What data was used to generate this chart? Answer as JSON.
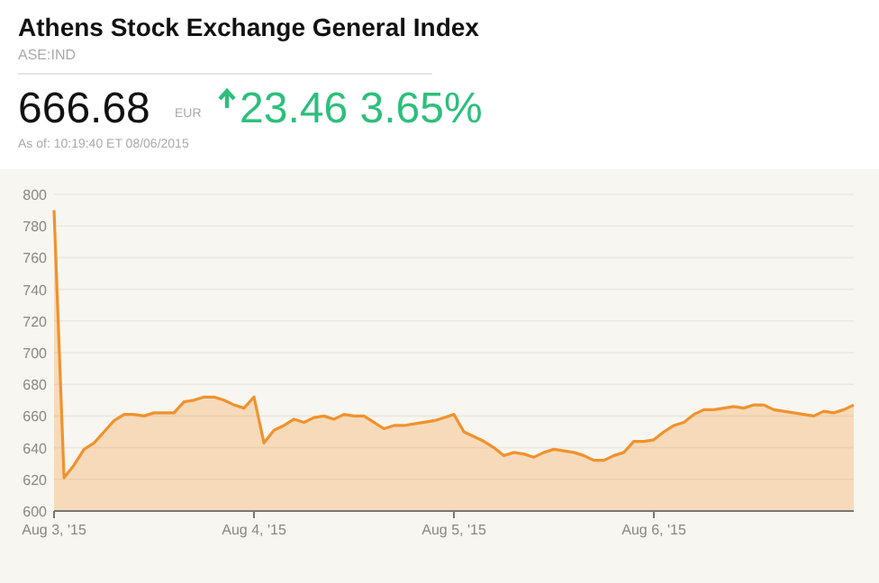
{
  "chart_data": {
    "type": "area",
    "title": "Athens Stock Exchange General Index",
    "subtitle": "ASE:IND",
    "annotations": [
      "666.68",
      "EUR",
      "23.46 3.65%",
      "As of: 10:19:40 ET 08/06/2015"
    ],
    "categories": [
      "Aug 3, '15",
      null,
      null,
      null,
      null,
      null,
      null,
      null,
      null,
      null,
      null,
      null,
      null,
      null,
      null,
      null,
      null,
      null,
      null,
      null,
      "Aug 4, '15",
      null,
      null,
      null,
      null,
      null,
      null,
      null,
      null,
      null,
      null,
      null,
      null,
      null,
      null,
      null,
      null,
      null,
      null,
      null,
      "Aug 5, '15",
      null,
      null,
      null,
      null,
      null,
      null,
      null,
      null,
      null,
      null,
      null,
      null,
      null,
      null,
      null,
      null,
      null,
      null,
      null,
      "Aug 6, '15",
      null,
      null,
      null,
      null,
      null,
      null,
      null,
      null,
      null,
      null,
      null,
      null,
      null,
      null,
      null,
      null,
      null,
      null,
      null,
      null
    ],
    "series": [
      {
        "color": "#f0922e",
        "values": [
          790,
          621,
          629,
          639,
          643,
          650,
          657,
          661,
          661,
          660,
          662,
          662,
          662,
          669,
          670,
          672,
          672,
          670,
          667,
          665,
          672,
          643,
          651,
          654,
          658,
          656,
          659,
          660,
          658,
          661,
          660,
          660,
          656,
          652,
          654,
          654,
          655,
          656,
          657,
          659,
          661,
          650,
          647,
          644,
          640,
          635,
          637,
          636,
          634,
          637,
          639,
          638,
          637,
          635,
          632,
          632,
          635,
          637,
          644,
          644,
          645,
          650,
          654,
          656,
          661,
          664,
          664,
          665,
          666,
          665,
          667,
          667,
          664,
          663,
          662,
          661,
          660,
          663,
          662,
          664,
          667
        ]
      }
    ],
    "ylim": [
      600,
      800
    ],
    "yticks": [
      600,
      620,
      640,
      660,
      680,
      700,
      720,
      740,
      760,
      780,
      800
    ],
    "grid": "y"
  }
}
